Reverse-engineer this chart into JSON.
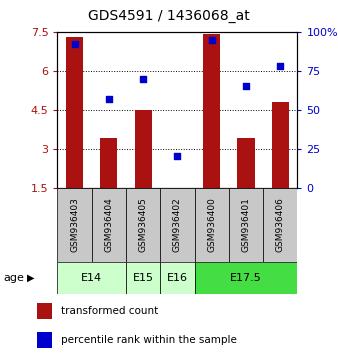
{
  "title": "GDS4591 / 1436068_at",
  "samples": [
    "GSM936403",
    "GSM936404",
    "GSM936405",
    "GSM936402",
    "GSM936400",
    "GSM936401",
    "GSM936406"
  ],
  "transformed_count": [
    7.3,
    3.4,
    4.5,
    1.5,
    7.4,
    3.4,
    4.8
  ],
  "percentile_rank": [
    92,
    57,
    70,
    20,
    95,
    65,
    78
  ],
  "ylim_left": [
    1.5,
    7.5
  ],
  "ylim_right": [
    0,
    100
  ],
  "yticks_left": [
    1.5,
    3.0,
    4.5,
    6.0,
    7.5
  ],
  "yticks_right": [
    0,
    25,
    50,
    75,
    100
  ],
  "ytick_labels_right": [
    "0",
    "25",
    "50",
    "75",
    "100%"
  ],
  "ytick_labels_left": [
    "1.5",
    "3",
    "4.5",
    "6",
    "7.5"
  ],
  "bar_color": "#aa1111",
  "dot_color": "#0000cc",
  "bg_color": "#ffffff",
  "sample_box_color": "#c8c8c8",
  "legend_tc_color": "#aa1111",
  "legend_pr_color": "#0000cc",
  "age_groups": [
    {
      "label": "E14",
      "start": 0,
      "end": 1,
      "color": "#ccffcc"
    },
    {
      "label": "E15",
      "start": 2,
      "end": 2,
      "color": "#ccffcc"
    },
    {
      "label": "E16",
      "start": 3,
      "end": 3,
      "color": "#ccffcc"
    },
    {
      "label": "E17.5",
      "start": 4,
      "end": 6,
      "color": "#44dd44"
    }
  ]
}
